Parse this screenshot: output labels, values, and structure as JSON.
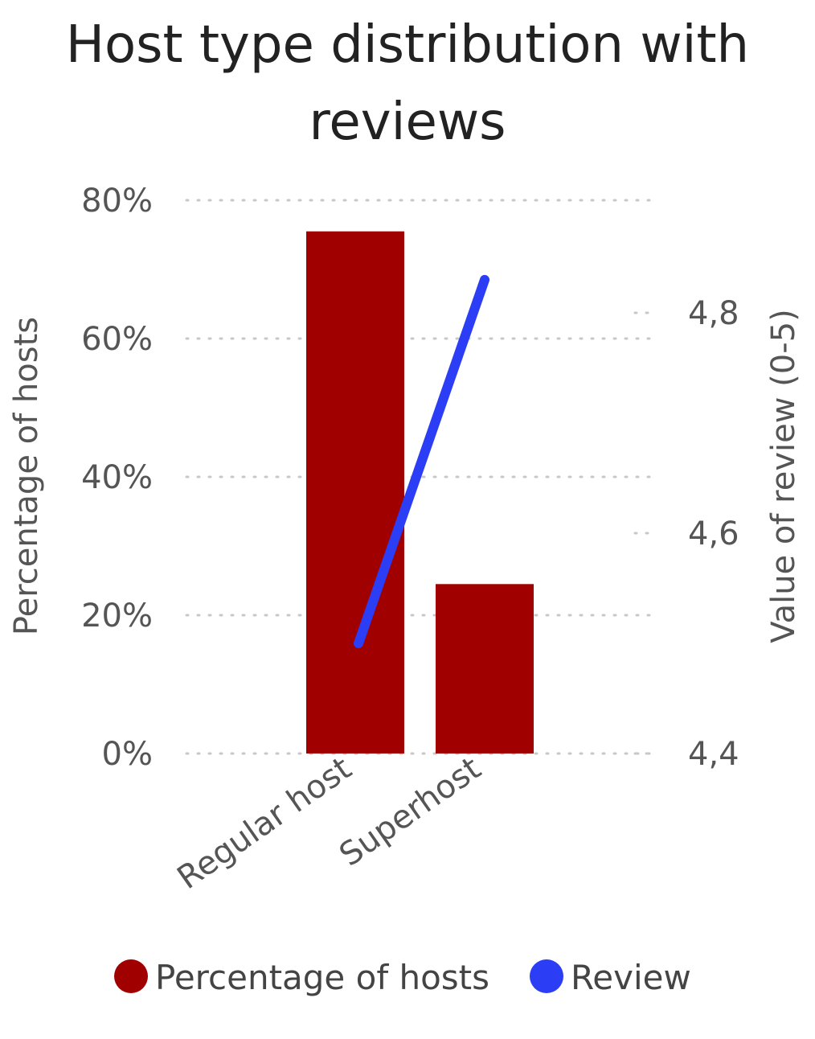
{
  "chart_data": {
    "type": "bar",
    "title_lines": [
      "Host type distribution with",
      "reviews"
    ],
    "categories": [
      "Regular host",
      "Superhost"
    ],
    "series": [
      {
        "name": "Percentage of hosts",
        "type": "bar",
        "axis": "left",
        "values": [
          75.5,
          24.5
        ],
        "color": "#a10000"
      },
      {
        "name": "Review",
        "type": "line",
        "axis": "right",
        "values": [
          4.5,
          4.83
        ],
        "color": "#2b3ef5"
      }
    ],
    "y_left": {
      "label": "Percentage of hosts",
      "ylim": [
        0,
        80
      ],
      "ticks": [
        "0%",
        "20%",
        "40%",
        "60%",
        "80%"
      ],
      "tick_values": [
        0,
        20,
        40,
        60,
        80
      ]
    },
    "y_right": {
      "label": "Value of review (0-5)",
      "ylim": [
        4.4,
        4.9
      ],
      "ticks": [
        "4,4",
        "4,6",
        "4,8"
      ],
      "tick_values": [
        4.4,
        4.6,
        4.8
      ]
    },
    "grid": true,
    "legend_position": "bottom"
  }
}
